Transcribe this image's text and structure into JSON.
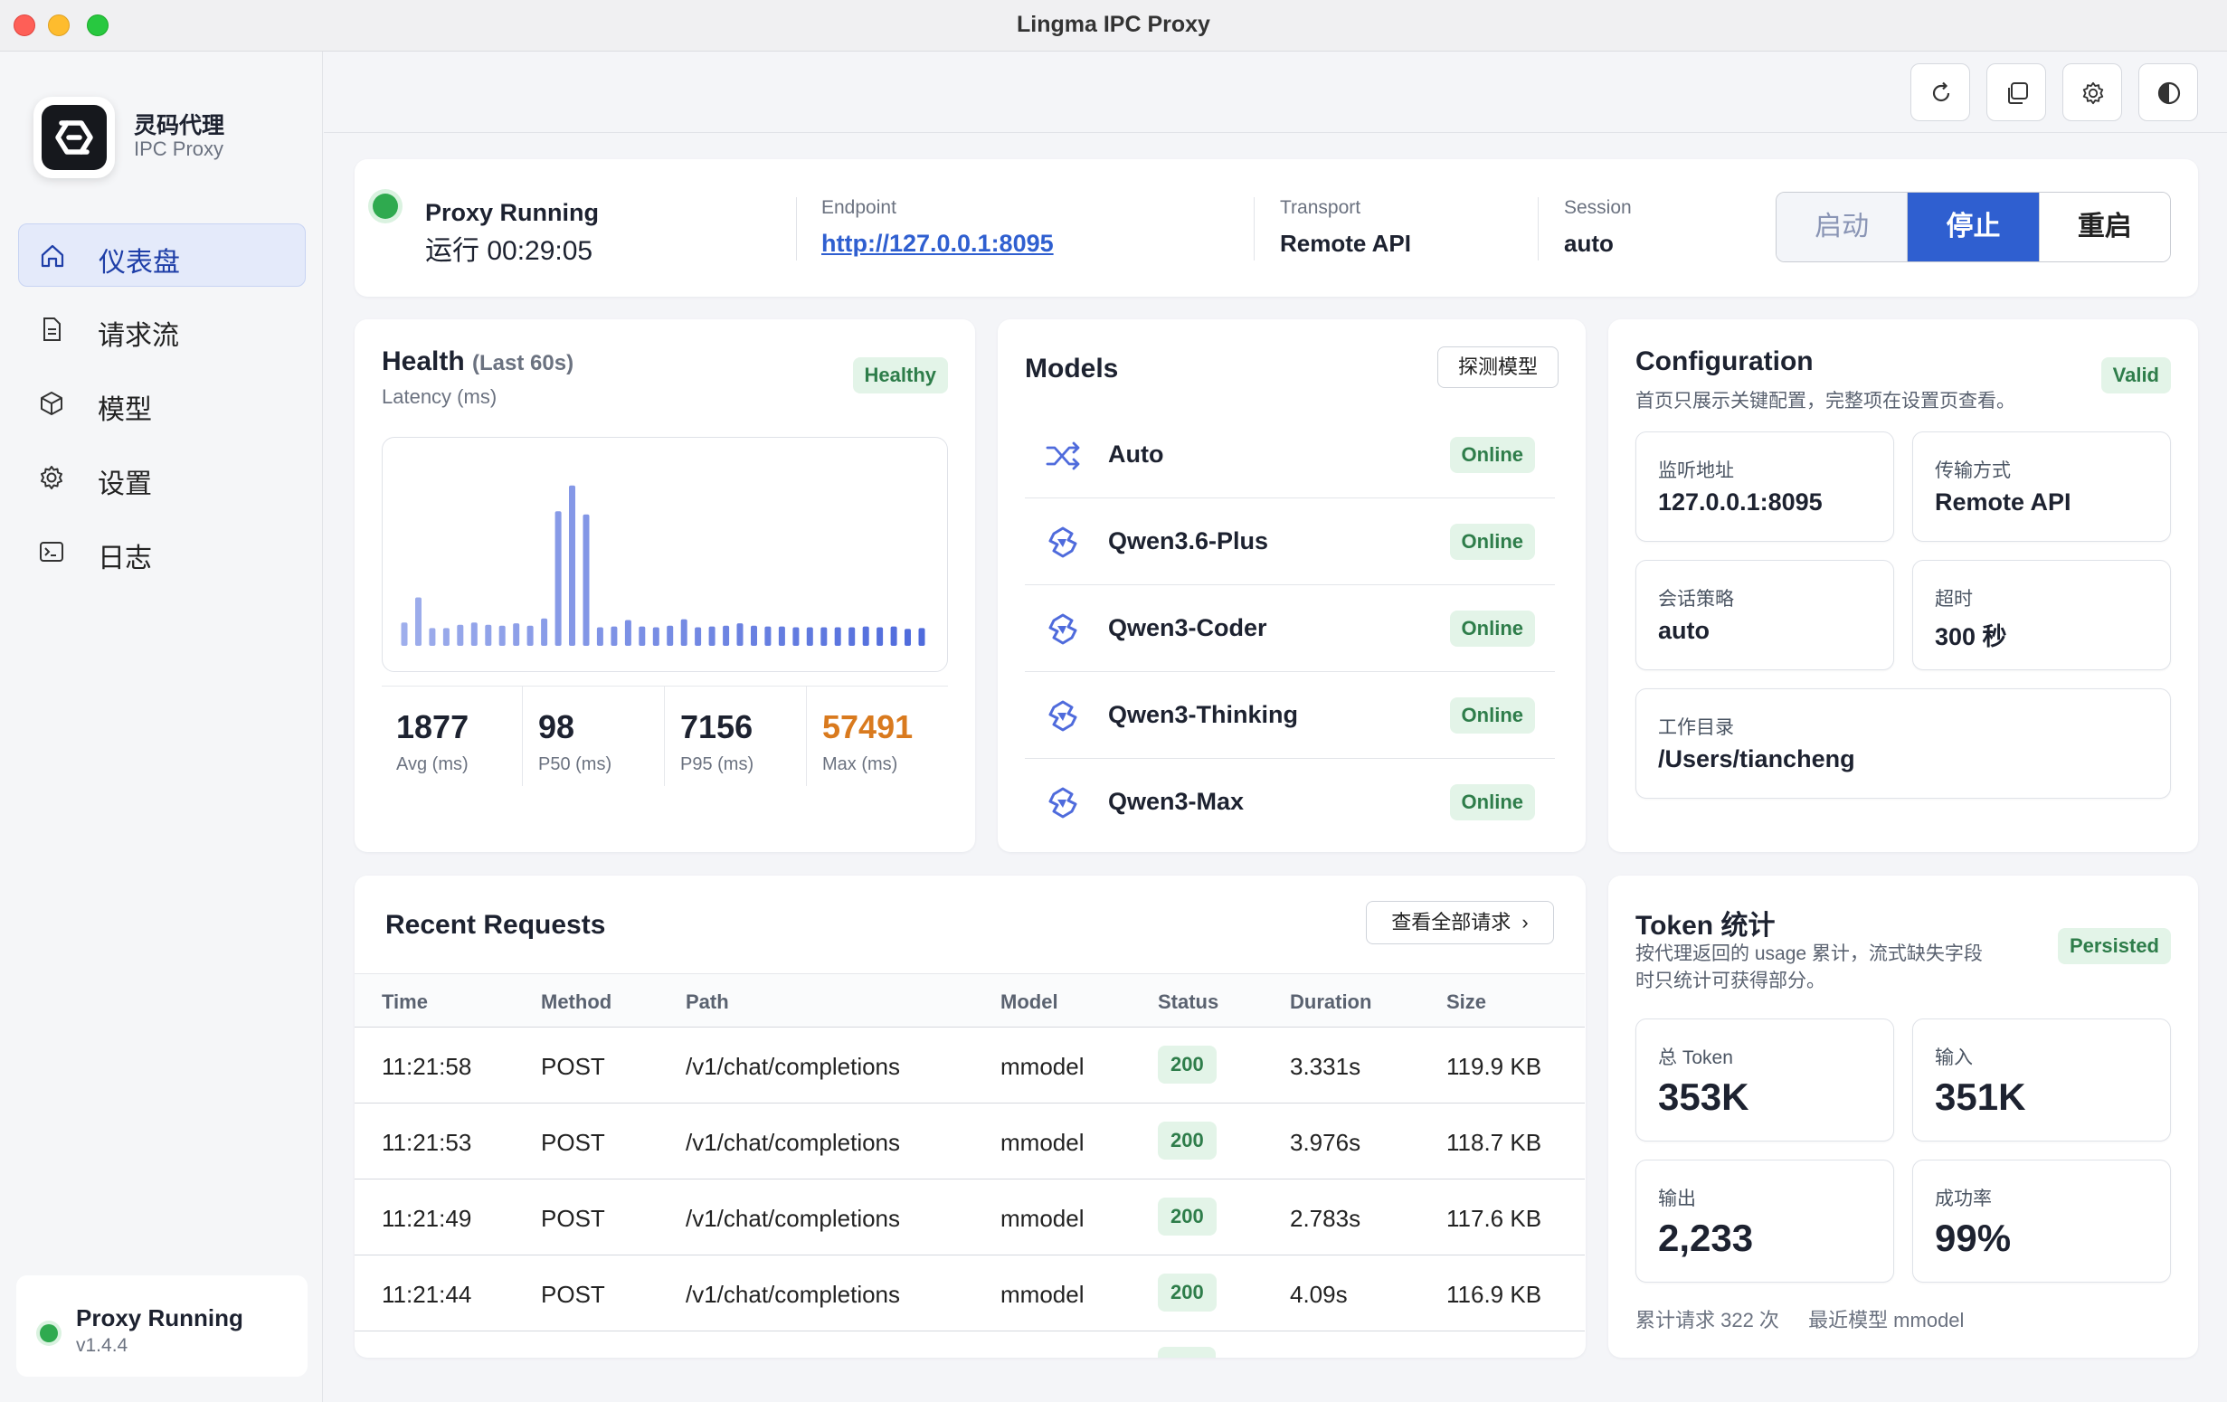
{
  "window": {
    "title": "Lingma IPC Proxy"
  },
  "app": {
    "name": "灵码代理",
    "subtitle": "IPC Proxy"
  },
  "nav": [
    {
      "label": "仪表盘",
      "icon": "home-icon",
      "active": true
    },
    {
      "label": "请求流",
      "icon": "document-icon",
      "active": false
    },
    {
      "label": "模型",
      "icon": "cube-icon",
      "active": false
    },
    {
      "label": "设置",
      "icon": "gear-icon",
      "active": false
    },
    {
      "label": "日志",
      "icon": "terminal-icon",
      "active": false
    }
  ],
  "sidebar_status": {
    "title": "Proxy Running",
    "version": "v1.4.4"
  },
  "toolbar": {
    "icons": [
      "refresh-icon",
      "copy-icon",
      "gear-icon",
      "contrast-icon"
    ]
  },
  "status": {
    "title": "Proxy Running",
    "uptime": "运行 00:29:05",
    "endpoint_label": "Endpoint",
    "endpoint_value": "http://127.0.0.1:8095",
    "transport_label": "Transport",
    "transport_value": "Remote API",
    "session_label": "Session",
    "session_value": "auto",
    "start": "启动",
    "stop": "停止",
    "restart": "重启"
  },
  "health": {
    "title": "Health",
    "title_suffix": "(Last 60s)",
    "subtitle": "Latency (ms)",
    "badge": "Healthy",
    "stats": [
      {
        "value": "1877",
        "label": "Avg (ms)"
      },
      {
        "value": "98",
        "label": "P50 (ms)"
      },
      {
        "value": "7156",
        "label": "P95 (ms)"
      },
      {
        "value": "57491",
        "label": "Max (ms)"
      }
    ]
  },
  "chart_data": {
    "type": "bar",
    "title": "",
    "xlabel": "",
    "ylabel": "Latency (ms)",
    "values": [
      2900,
      6000,
      2200,
      2200,
      2600,
      2900,
      2600,
      2500,
      2800,
      2500,
      3400,
      16700,
      19900,
      16300,
      2300,
      2400,
      3200,
      2400,
      2300,
      2500,
      3300,
      2300,
      2400,
      2500,
      2800,
      2500,
      2400,
      2400,
      2300,
      2300,
      2300,
      2300,
      2300,
      2400,
      2300,
      2400,
      2100,
      2200
    ],
    "ylim": [
      0,
      22000
    ],
    "color": "#4f6bdc"
  },
  "models": {
    "title": "Models",
    "probe_button": "探测模型",
    "items": [
      {
        "name": "Auto",
        "status": "Online",
        "icon": "shuffle-icon"
      },
      {
        "name": "Qwen3.6-Plus",
        "status": "Online",
        "icon": "qwen-icon"
      },
      {
        "name": "Qwen3-Coder",
        "status": "Online",
        "icon": "qwen-icon"
      },
      {
        "name": "Qwen3-Thinking",
        "status": "Online",
        "icon": "qwen-icon"
      },
      {
        "name": "Qwen3-Max",
        "status": "Online",
        "icon": "qwen-icon"
      }
    ]
  },
  "config": {
    "title": "Configuration",
    "subtitle": "首页只展示关键配置，完整项在设置页查看。",
    "badge": "Valid",
    "items": [
      {
        "key": "监听地址",
        "value": "127.0.0.1:8095"
      },
      {
        "key": "传输方式",
        "value": "Remote API"
      },
      {
        "key": "会话策略",
        "value": "auto"
      },
      {
        "key": "超时",
        "value": "300 秒"
      },
      {
        "key": "工作目录",
        "value": "/Users/tiancheng"
      }
    ]
  },
  "requests": {
    "title": "Recent Requests",
    "view_all": "查看全部请求",
    "columns": [
      "Time",
      "Method",
      "Path",
      "Model",
      "Status",
      "Duration",
      "Size"
    ],
    "rows": [
      {
        "time": "11:21:58",
        "method": "POST",
        "path": "/v1/chat/completions",
        "model": "mmodel",
        "status": "200",
        "duration": "3.331s",
        "size": "119.9 KB"
      },
      {
        "time": "11:21:53",
        "method": "POST",
        "path": "/v1/chat/completions",
        "model": "mmodel",
        "status": "200",
        "duration": "3.976s",
        "size": "118.7 KB"
      },
      {
        "time": "11:21:49",
        "method": "POST",
        "path": "/v1/chat/completions",
        "model": "mmodel",
        "status": "200",
        "duration": "2.783s",
        "size": "117.6 KB"
      },
      {
        "time": "11:21:44",
        "method": "POST",
        "path": "/v1/chat/completions",
        "model": "mmodel",
        "status": "200",
        "duration": "4.09s",
        "size": "116.9 KB"
      }
    ]
  },
  "tokens": {
    "title": "Token 统计",
    "subtitle_line1": "按代理返回的 usage 累计，流式缺失字段",
    "subtitle_line2": "时只统计可获得部分。",
    "badge": "Persisted",
    "items": [
      {
        "key": "总 Token",
        "value": "353K"
      },
      {
        "key": "输入",
        "value": "351K"
      },
      {
        "key": "输出",
        "value": "2,233"
      },
      {
        "key": "成功率",
        "value": "99%"
      }
    ],
    "footer_requests": "累计请求 322 次",
    "footer_model": "最近模型 mmodel"
  },
  "colors": {
    "accent": "#2f5fd0",
    "success": "#2faa4f",
    "warning": "#d97a1e",
    "link": "#2f5fd0"
  }
}
